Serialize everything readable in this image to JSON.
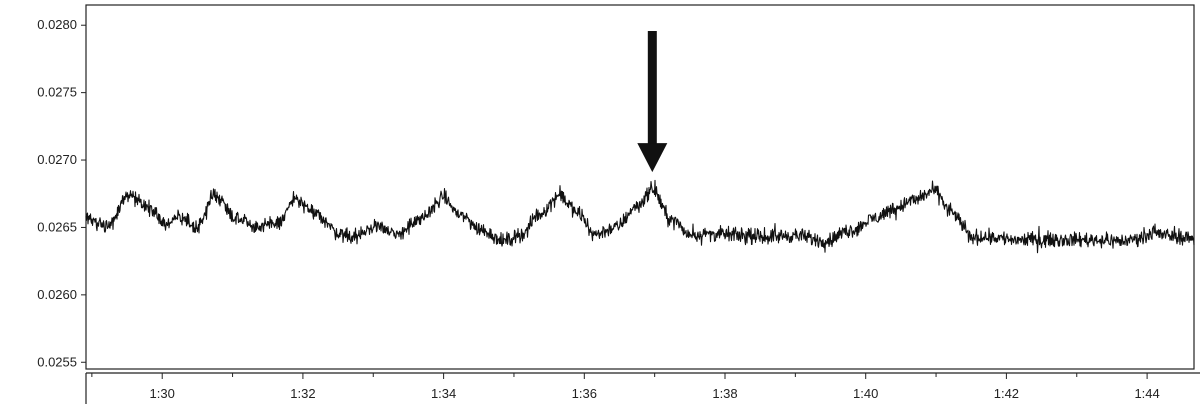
{
  "chart_data": {
    "type": "line",
    "title": "",
    "xlabel": "",
    "ylabel": "",
    "x_ticks": [
      "1:30",
      "1:32",
      "1:34",
      "1:36",
      "1:38",
      "1:40",
      "1:42",
      "1:44"
    ],
    "y_ticks": [
      "0.0255",
      "0.0260",
      "0.0265",
      "0.0270",
      "0.0275",
      "0.0280"
    ],
    "xlim": [
      "1:28:55",
      "1:44:40"
    ],
    "ylim": [
      0.02545,
      0.02815
    ],
    "grid": "dotted",
    "series": [
      {
        "color": "#111111",
        "x": [
          "1:28:55",
          "1:29:14",
          "1:29:31",
          "1:29:50",
          "1:30:03",
          "1:30:15",
          "1:30:30",
          "1:30:44",
          "1:31:05",
          "1:31:24",
          "1:31:40",
          "1:31:53",
          "1:32:11",
          "1:32:31",
          "1:32:45",
          "1:33:05",
          "1:33:18",
          "1:33:39",
          "1:34:00",
          "1:34:13",
          "1:34:33",
          "1:34:51",
          "1:35:07",
          "1:35:22",
          "1:35:39",
          "1:35:55",
          "1:36:09",
          "1:36:27",
          "1:36:45",
          "1:36:58",
          "1:37:14",
          "1:37:30",
          "1:37:55",
          "1:38:30",
          "1:39:00",
          "1:39:25",
          "1:39:48",
          "1:40:08",
          "1:40:24",
          "1:40:40",
          "1:40:58",
          "1:41:15",
          "1:41:30",
          "1:41:45",
          "1:42:10",
          "1:42:40",
          "1:43:10",
          "1:43:40",
          "1:44:05",
          "1:44:40"
        ],
        "y": [
          0.02656,
          0.02652,
          0.02674,
          0.02665,
          0.02652,
          0.02657,
          0.0265,
          0.02674,
          0.02657,
          0.0265,
          0.02654,
          0.02671,
          0.0266,
          0.02646,
          0.02643,
          0.02652,
          0.02644,
          0.02655,
          0.02672,
          0.0266,
          0.02648,
          0.0264,
          0.02645,
          0.0266,
          0.02674,
          0.0266,
          0.02645,
          0.0265,
          0.02666,
          0.02678,
          0.02656,
          0.02645,
          0.02645,
          0.02643,
          0.02644,
          0.0264,
          0.02648,
          0.02657,
          0.02664,
          0.0267,
          0.02677,
          0.0266,
          0.02643,
          0.02643,
          0.02641,
          0.02641,
          0.02641,
          0.0264,
          0.02645,
          0.02642
        ]
      }
    ],
    "annotations": [
      {
        "type": "arrow",
        "direction": "down",
        "x": "1:36:58",
        "y": 0.02691,
        "color": "#111111"
      }
    ]
  }
}
